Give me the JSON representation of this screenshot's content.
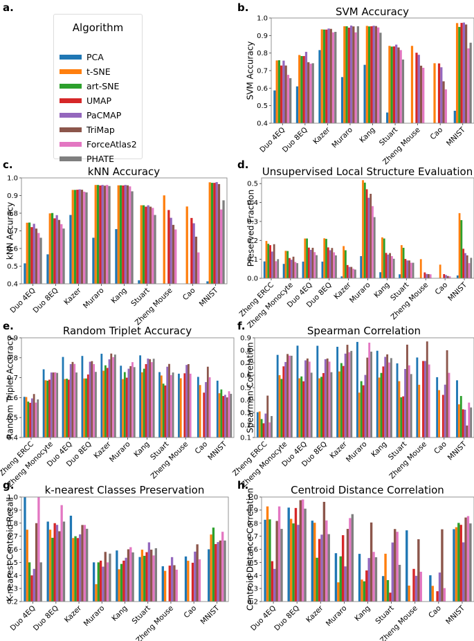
{
  "figure": {
    "panel_letters": [
      "a.",
      "b.",
      "c.",
      "d.",
      "e.",
      "f.",
      "g.",
      "h."
    ]
  },
  "legend": {
    "title": "Algorithm",
    "items": [
      {
        "label": "PCA",
        "color": "#1f77b4"
      },
      {
        "label": "t-SNE",
        "color": "#ff7f0e"
      },
      {
        "label": "art-SNE",
        "color": "#2ca02c"
      },
      {
        "label": "UMAP",
        "color": "#d62728"
      },
      {
        "label": "PaCMAP",
        "color": "#9467bd"
      },
      {
        "label": "TriMap",
        "color": "#8c564b"
      },
      {
        "label": "ForceAtlas2",
        "color": "#e377c2"
      },
      {
        "label": "PHATE",
        "color": "#7f7f7f"
      }
    ]
  },
  "chart_data": [
    {
      "id": "b",
      "type": "bar",
      "title": "SVM Accuracy",
      "xlabel": "",
      "ylabel": "SVM Accuracy",
      "ylim": [
        0.4,
        1.0
      ],
      "yticks": [
        "0.4",
        "0.5",
        "0.6",
        "0.7",
        "0.8",
        "0.9",
        "1.0"
      ],
      "categories": [
        "Duo 4EQ",
        "Duo 8EQ",
        "Kazer",
        "Muraro",
        "Kang",
        "Stuart",
        "Zheng Mouse",
        "Cao",
        "MNIST"
      ],
      "series": [
        {
          "name": "PCA",
          "values": [
            0.587,
            0.61,
            0.817,
            0.663,
            0.733,
            0.461,
            null,
            null,
            0.471
          ]
        },
        {
          "name": "t-SNE",
          "values": [
            0.758,
            0.789,
            0.935,
            0.953,
            0.955,
            0.841,
            0.841,
            0.742,
            0.971
          ]
        },
        {
          "name": "art-SNE",
          "values": [
            0.759,
            0.783,
            0.934,
            0.953,
            0.952,
            0.837,
            null,
            null,
            0.949
          ]
        },
        {
          "name": "UMAP",
          "values": [
            0.729,
            0.783,
            0.934,
            0.945,
            0.953,
            0.838,
            0.802,
            0.741,
            0.972
          ]
        },
        {
          "name": "PaCMAP",
          "values": [
            0.757,
            0.807,
            0.94,
            0.957,
            0.956,
            0.848,
            0.79,
            0.719,
            0.974
          ]
        },
        {
          "name": "TriMap",
          "values": [
            0.729,
            0.748,
            0.938,
            0.952,
            0.954,
            0.832,
            0.728,
            0.639,
            0.963
          ]
        },
        {
          "name": "ForceAtlas2",
          "values": [
            0.676,
            0.739,
            0.918,
            0.918,
            0.946,
            0.817,
            0.716,
            0.593,
            0.827
          ]
        },
        {
          "name": "PHATE",
          "values": [
            0.657,
            0.742,
            0.921,
            0.953,
            0.916,
            0.763,
            null,
            null,
            0.859
          ]
        }
      ]
    },
    {
      "id": "c",
      "type": "bar",
      "title": "kNN Accuracy",
      "xlabel": "",
      "ylabel": "kNN Accuracy",
      "ylim": [
        0.4,
        1.0
      ],
      "yticks": [
        "0.4",
        "0.5",
        "0.6",
        "0.7",
        "0.8",
        "0.9",
        "1.0"
      ],
      "categories": [
        "Duo 4EQ",
        "Duo 8EQ",
        "Kazer",
        "Muraro",
        "Kang",
        "Stuart",
        "Zheng Mouse",
        "Cao",
        "MNIST"
      ],
      "series": [
        {
          "name": "PCA",
          "values": [
            0.516,
            0.567,
            0.79,
            0.661,
            0.71,
            0.42,
            null,
            null,
            0.414
          ]
        },
        {
          "name": "t-SNE",
          "values": [
            0.746,
            0.799,
            0.932,
            0.96,
            0.958,
            0.845,
            0.901,
            0.838,
            0.975
          ]
        },
        {
          "name": "art-SNE",
          "values": [
            0.747,
            0.801,
            0.932,
            0.96,
            0.958,
            0.845,
            null,
            null,
            0.972
          ]
        },
        {
          "name": "UMAP",
          "values": [
            0.721,
            0.771,
            0.933,
            0.957,
            0.957,
            0.837,
            0.818,
            0.773,
            0.972
          ]
        },
        {
          "name": "PaCMAP",
          "values": [
            0.74,
            0.789,
            0.935,
            0.96,
            0.96,
            0.845,
            0.774,
            0.743,
            0.976
          ]
        },
        {
          "name": "TriMap",
          "values": [
            0.713,
            0.762,
            0.933,
            0.956,
            0.958,
            0.837,
            0.734,
            0.667,
            0.965
          ]
        },
        {
          "name": "ForceAtlas2",
          "values": [
            0.688,
            0.738,
            0.922,
            0.96,
            0.952,
            0.83,
            0.708,
            0.578,
            0.821
          ]
        },
        {
          "name": "PHATE",
          "values": [
            0.661,
            0.713,
            0.918,
            0.954,
            0.924,
            0.79,
            null,
            null,
            0.873
          ]
        }
      ]
    },
    {
      "id": "d",
      "type": "bar",
      "title": "Unsupervised Local Structure Evaluation",
      "xlabel": "",
      "ylabel": "Preserved Fraction",
      "ylim": [
        0.0,
        0.53
      ],
      "yticks": [
        "0.0",
        "0.1",
        "0.2",
        "0.3",
        "0.4",
        "0.5"
      ],
      "categories": [
        "Zheng ERCC",
        "Zheng Monocyte",
        "Duo 4EQ",
        "Duo 8EQ",
        "Kazer",
        "Muraro",
        "Kang",
        "Stuart",
        "Zheng Mouse",
        "Cao",
        "MNIST"
      ],
      "series": [
        {
          "name": "PCA",
          "values": [
            0.089,
            0.076,
            0.088,
            0.088,
            0.01,
            0.117,
            0.032,
            0.021,
            0.002,
            0.001,
            0.015
          ]
        },
        {
          "name": "t-SNE",
          "values": [
            0.197,
            0.145,
            0.21,
            0.211,
            0.17,
            0.518,
            0.216,
            0.175,
            0.101,
            0.072,
            0.344
          ]
        },
        {
          "name": "art-SNE",
          "values": [
            0.182,
            0.144,
            0.21,
            0.208,
            0.148,
            0.505,
            0.21,
            0.161,
            null,
            null,
            0.307
          ]
        },
        {
          "name": "UMAP",
          "values": [
            0.175,
            0.107,
            0.162,
            0.163,
            0.07,
            0.47,
            0.134,
            0.102,
            0.031,
            0.022,
            0.156
          ]
        },
        {
          "name": "PaCMAP",
          "values": [
            0.141,
            0.098,
            0.15,
            0.148,
            0.06,
            0.425,
            0.125,
            0.094,
            0.023,
            0.017,
            0.133
          ]
        },
        {
          "name": "TriMap",
          "values": [
            0.18,
            0.114,
            0.161,
            0.16,
            0.06,
            0.446,
            0.133,
            0.094,
            0.022,
            0.012,
            0.121
          ]
        },
        {
          "name": "ForceAtlas2",
          "values": [
            0.09,
            0.086,
            0.138,
            0.137,
            0.05,
            0.381,
            0.117,
            0.082,
            0.021,
            0.01,
            0.08
          ]
        },
        {
          "name": "PHATE",
          "values": [
            0.101,
            0.08,
            0.122,
            0.121,
            0.046,
            0.323,
            0.103,
            0.082,
            null,
            null,
            0.108
          ]
        }
      ]
    },
    {
      "id": "e",
      "type": "bar",
      "title": "Random Triplet Accuracy",
      "xlabel": "",
      "ylabel": "Random Triplet Accuracy",
      "ylim": [
        0.4,
        0.9
      ],
      "yticks": [
        "0.4",
        "0.5",
        "0.6",
        "0.7",
        "0.8",
        "0.9"
      ],
      "categories": [
        "Zheng ERCC",
        "Zheng Monocyte",
        "Duo 4EQ",
        "Duo 8EQ",
        "Kazer",
        "Muraro",
        "Kang",
        "Stuart",
        "Zheng Mouse",
        "Cao",
        "MNIST"
      ],
      "series": [
        {
          "name": "PCA",
          "values": [
            0.604,
            0.742,
            0.804,
            0.809,
            0.82,
            0.76,
            0.812,
            0.728,
            0.72,
            0.704,
            0.685
          ]
        },
        {
          "name": "t-SNE",
          "values": [
            0.603,
            0.687,
            0.693,
            0.696,
            0.735,
            0.693,
            0.727,
            0.711,
            0.697,
            0.663,
            0.622
          ]
        },
        {
          "name": "art-SNE",
          "values": [
            0.58,
            0.685,
            0.695,
            0.696,
            0.762,
            0.728,
            0.745,
            0.67,
            null,
            null,
            0.641
          ]
        },
        {
          "name": "UMAP",
          "values": [
            0.574,
            0.69,
            0.69,
            0.716,
            0.749,
            0.7,
            0.768,
            0.661,
            0.722,
            0.625,
            0.608
          ]
        },
        {
          "name": "PaCMAP",
          "values": [
            0.596,
            0.726,
            0.768,
            0.78,
            0.792,
            0.745,
            0.796,
            0.755,
            0.764,
            0.678,
            0.614
          ]
        },
        {
          "name": "TriMap",
          "values": [
            0.618,
            0.726,
            0.779,
            0.783,
            0.821,
            0.758,
            0.793,
            0.769,
            0.768,
            0.755,
            0.601
          ]
        },
        {
          "name": "ForceAtlas2",
          "values": [
            0.575,
            0.727,
            0.769,
            0.768,
            0.803,
            0.778,
            0.778,
            0.713,
            0.72,
            0.702,
            0.632
          ]
        },
        {
          "name": "PHATE",
          "values": [
            0.591,
            0.724,
            0.726,
            0.729,
            0.816,
            0.753,
            0.795,
            0.726,
            null,
            null,
            0.619
          ]
        }
      ]
    },
    {
      "id": "f",
      "type": "bar",
      "title": "Spearman Correlation",
      "xlabel": "",
      "ylabel": "Spearman Correlation",
      "ylim": [
        0.1,
        0.9
      ],
      "yticks": [
        "0.1",
        "0.2",
        "0.3",
        "0.4",
        "0.5",
        "0.6",
        "0.7",
        "0.8",
        "0.9"
      ],
      "categories": [
        "Zheng ERCC",
        "Zheng Monocyte",
        "Duo 4EQ",
        "Duo 8EQ",
        "Kazer",
        "Muraro",
        "Kang",
        "Stuart",
        "Zheng Mouse",
        "Cao",
        "MNIST"
      ],
      "series": [
        {
          "name": "PCA",
          "values": [
            0.303,
            0.763,
            0.837,
            0.836,
            0.828,
            0.867,
            0.796,
            0.695,
            0.742,
            0.584,
            0.559
          ]
        },
        {
          "name": "t-SNE",
          "values": [
            0.309,
            0.6,
            0.575,
            0.575,
            0.63,
            0.46,
            0.581,
            0.552,
            0.523,
            0.48,
            0.366
          ]
        },
        {
          "name": "art-SNE",
          "values": [
            0.248,
            0.57,
            0.59,
            0.587,
            0.697,
            0.552,
            0.618,
            0.423,
            null,
            null,
            0.433
          ]
        },
        {
          "name": "UMAP",
          "values": [
            0.214,
            0.671,
            0.551,
            0.617,
            0.674,
            0.519,
            0.67,
            0.43,
            0.714,
            0.442,
            0.326
          ]
        },
        {
          "name": "PaCMAP",
          "values": [
            0.292,
            0.706,
            0.719,
            0.728,
            0.773,
            0.602,
            0.747,
            0.65,
            0.714,
            0.524,
            0.323
          ]
        },
        {
          "name": "TriMap",
          "values": [
            0.436,
            0.77,
            0.734,
            0.734,
            0.844,
            0.741,
            0.767,
            0.845,
            0.871,
            0.8,
            0.196
          ]
        },
        {
          "name": "ForceAtlas2",
          "values": [
            0.221,
            0.757,
            0.709,
            0.709,
            0.784,
            0.861,
            0.702,
            0.679,
            0.686,
            0.619,
            0.38
          ]
        },
        {
          "name": "PHATE",
          "values": [
            0.272,
            0.756,
            0.62,
            0.624,
            0.795,
            0.789,
            0.737,
            0.609,
            null,
            null,
            0.341
          ]
        }
      ]
    },
    {
      "id": "g",
      "type": "bar",
      "title": "k-nearest Classes Preservation",
      "xlabel": "",
      "ylabel": "K-nearest Centroid Recall",
      "ylim": [
        0.2,
        1.0
      ],
      "yticks": [
        "0.2",
        "0.3",
        "0.4",
        "0.5",
        "0.6",
        "0.7",
        "0.8",
        "0.9",
        "1.0"
      ],
      "categories": [
        "Duo 4EQ",
        "Duo 8EQ",
        "Kazer",
        "Muraro",
        "Kang",
        "Stuart",
        "Zheng Mouse",
        "Cao",
        "MNIST"
      ],
      "series": [
        {
          "name": "PCA",
          "values": [
            1.0,
            0.812,
            0.857,
            0.5,
            0.591,
            0.541,
            0.47,
            0.545,
            0.6
          ]
        },
        {
          "name": "t-SNE",
          "values": [
            0.75,
            0.75,
            0.686,
            0.333,
            0.447,
            0.597,
            0.435,
            0.512,
            0.713
          ]
        },
        {
          "name": "art-SNE",
          "values": [
            0.5,
            0.688,
            0.7,
            0.5,
            0.488,
            0.55,
            null,
            null,
            0.766
          ]
        },
        {
          "name": "UMAP",
          "values": [
            0.4,
            0.8,
            0.686,
            0.513,
            0.513,
            0.578,
            0.475,
            0.497,
            0.64
          ]
        },
        {
          "name": "PaCMAP",
          "values": [
            0.45,
            0.787,
            0.714,
            0.467,
            0.535,
            0.653,
            0.54,
            0.582,
            0.655
          ]
        },
        {
          "name": "TriMap",
          "values": [
            0.8,
            0.738,
            0.786,
            0.58,
            0.6,
            0.597,
            0.478,
            0.638,
            0.667
          ]
        },
        {
          "name": "ForceAtlas2",
          "values": [
            1.0,
            0.938,
            0.786,
            0.5,
            0.616,
            0.553,
            0.444,
            0.523,
            0.734
          ]
        },
        {
          "name": "PHATE",
          "values": [
            0.5,
            0.812,
            0.757,
            0.567,
            0.576,
            0.608,
            null,
            null,
            0.667
          ]
        }
      ]
    },
    {
      "id": "h",
      "type": "bar",
      "title": "Centroid Distance Correlation",
      "xlabel": "",
      "ylabel": "Centroid Distance Correlation",
      "ylim": [
        0.2,
        1.0
      ],
      "yticks": [
        "0.2",
        "0.3",
        "0.4",
        "0.5",
        "0.6",
        "0.7",
        "0.8",
        "0.9",
        "1.0"
      ],
      "categories": [
        "Duo 4EQ",
        "Duo 8EQ",
        "Kazer",
        "Muraro",
        "Kang",
        "Stuart",
        "Zheng Mouse",
        "Cao",
        "MNIST"
      ],
      "series": [
        {
          "name": "PCA",
          "values": [
            0.826,
            0.919,
            0.819,
            0.57,
            0.565,
            0.395,
            0.745,
            0.401,
            0.754
          ]
        },
        {
          "name": "t-SNE",
          "values": [
            0.928,
            0.833,
            0.803,
            0.347,
            0.368,
            0.566,
            0.322,
            0.32,
            0.769
          ]
        },
        {
          "name": "art-SNE",
          "values": [
            0.829,
            0.798,
            0.535,
            0.546,
            0.355,
            0.364,
            null,
            null,
            0.802
          ]
        },
        {
          "name": "UMAP",
          "values": [
            0.509,
            0.916,
            0.679,
            0.708,
            0.438,
            0.268,
            0.45,
            0.279,
            0.787
          ]
        },
        {
          "name": "PaCMAP",
          "values": [
            0.45,
            0.787,
            0.712,
            0.469,
            0.533,
            0.652,
            0.397,
            0.422,
            0.653
          ]
        },
        {
          "name": "TriMap",
          "values": [
            0.817,
            0.976,
            0.963,
            0.756,
            0.805,
            0.755,
            0.677,
            0.753,
            0.843
          ]
        },
        {
          "name": "ForceAtlas2",
          "values": [
            0.928,
            0.981,
            0.821,
            0.839,
            0.58,
            0.734,
            0.428,
            0.303,
            0.854
          ]
        },
        {
          "name": "PHATE",
          "values": [
            0.756,
            0.911,
            0.716,
            0.869,
            0.539,
            0.481,
            null,
            null,
            0.798
          ]
        }
      ]
    }
  ]
}
